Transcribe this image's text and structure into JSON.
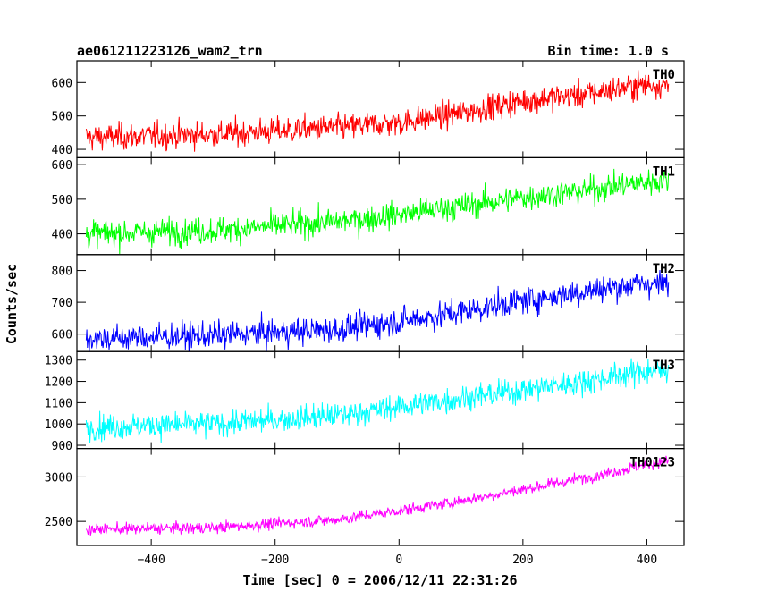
{
  "chart_data": {
    "type": "line",
    "title": "ae061211223126_wam2_trn",
    "bin_time_label": "Bin time: 1.0 s",
    "xlabel": "Time [sec] 0 = 2006/12/11 22:31:26",
    "ylabel": "Counts/sec",
    "xlim": [
      -520,
      460
    ],
    "x_range_data": [
      -505,
      435
    ],
    "x_ticks": [
      -400,
      -200,
      0,
      200,
      400
    ],
    "x_tick_labels": [
      "−400",
      "−200",
      "0",
      "200",
      "400"
    ],
    "panels": [
      {
        "name": "TH0",
        "color": "#ff0000",
        "ylim": [
          375,
          665
        ],
        "y_ticks": [
          400,
          500,
          600
        ],
        "y_tick_labels": [
          "400",
          "500",
          "600"
        ],
        "x_knots": [
          -505,
          -300,
          -100,
          0,
          100,
          200,
          300,
          400,
          435
        ],
        "y_knots": [
          435,
          445,
          465,
          480,
          510,
          545,
          565,
          595,
          590
        ],
        "noise": 28
      },
      {
        "name": "TH1",
        "color": "#00ff00",
        "ylim": [
          340,
          620
        ],
        "y_ticks": [
          400,
          500,
          600
        ],
        "y_tick_labels": [
          "400",
          "500",
          "600"
        ],
        "x_knots": [
          -505,
          -300,
          -100,
          0,
          100,
          200,
          300,
          400,
          435
        ],
        "y_knots": [
          400,
          410,
          435,
          455,
          480,
          505,
          525,
          550,
          555
        ],
        "noise": 27
      },
      {
        "name": "TH2",
        "color": "#0000ff",
        "ylim": [
          545,
          850
        ],
        "y_ticks": [
          600,
          700,
          800
        ],
        "y_tick_labels": [
          "600",
          "700",
          "800"
        ],
        "x_knots": [
          -505,
          -300,
          -100,
          0,
          100,
          200,
          300,
          400,
          435
        ],
        "y_knots": [
          585,
          595,
          615,
          640,
          670,
          705,
          735,
          760,
          755
        ],
        "noise": 30
      },
      {
        "name": "TH3",
        "color": "#00ffff",
        "ylim": [
          885,
          1340
        ],
        "y_ticks": [
          900,
          1000,
          1100,
          1200,
          1300
        ],
        "y_tick_labels": [
          "900",
          "1000",
          "1100",
          "1200",
          "1300"
        ],
        "x_knots": [
          -505,
          -300,
          -100,
          0,
          100,
          200,
          300,
          400,
          435
        ],
        "y_knots": [
          985,
          1000,
          1040,
          1080,
          1120,
          1160,
          1200,
          1250,
          1255
        ],
        "noise": 42
      },
      {
        "name": "TH0123",
        "color": "#ff00ff",
        "ylim": [
          2230,
          3320
        ],
        "y_ticks": [
          2500,
          3000
        ],
        "y_tick_labels": [
          "2500",
          "3000"
        ],
        "x_knots": [
          -505,
          -300,
          -100,
          0,
          100,
          200,
          300,
          400,
          435
        ],
        "y_knots": [
          2410,
          2430,
          2520,
          2620,
          2730,
          2860,
          2990,
          3140,
          3180
        ],
        "noise": 45
      }
    ]
  }
}
